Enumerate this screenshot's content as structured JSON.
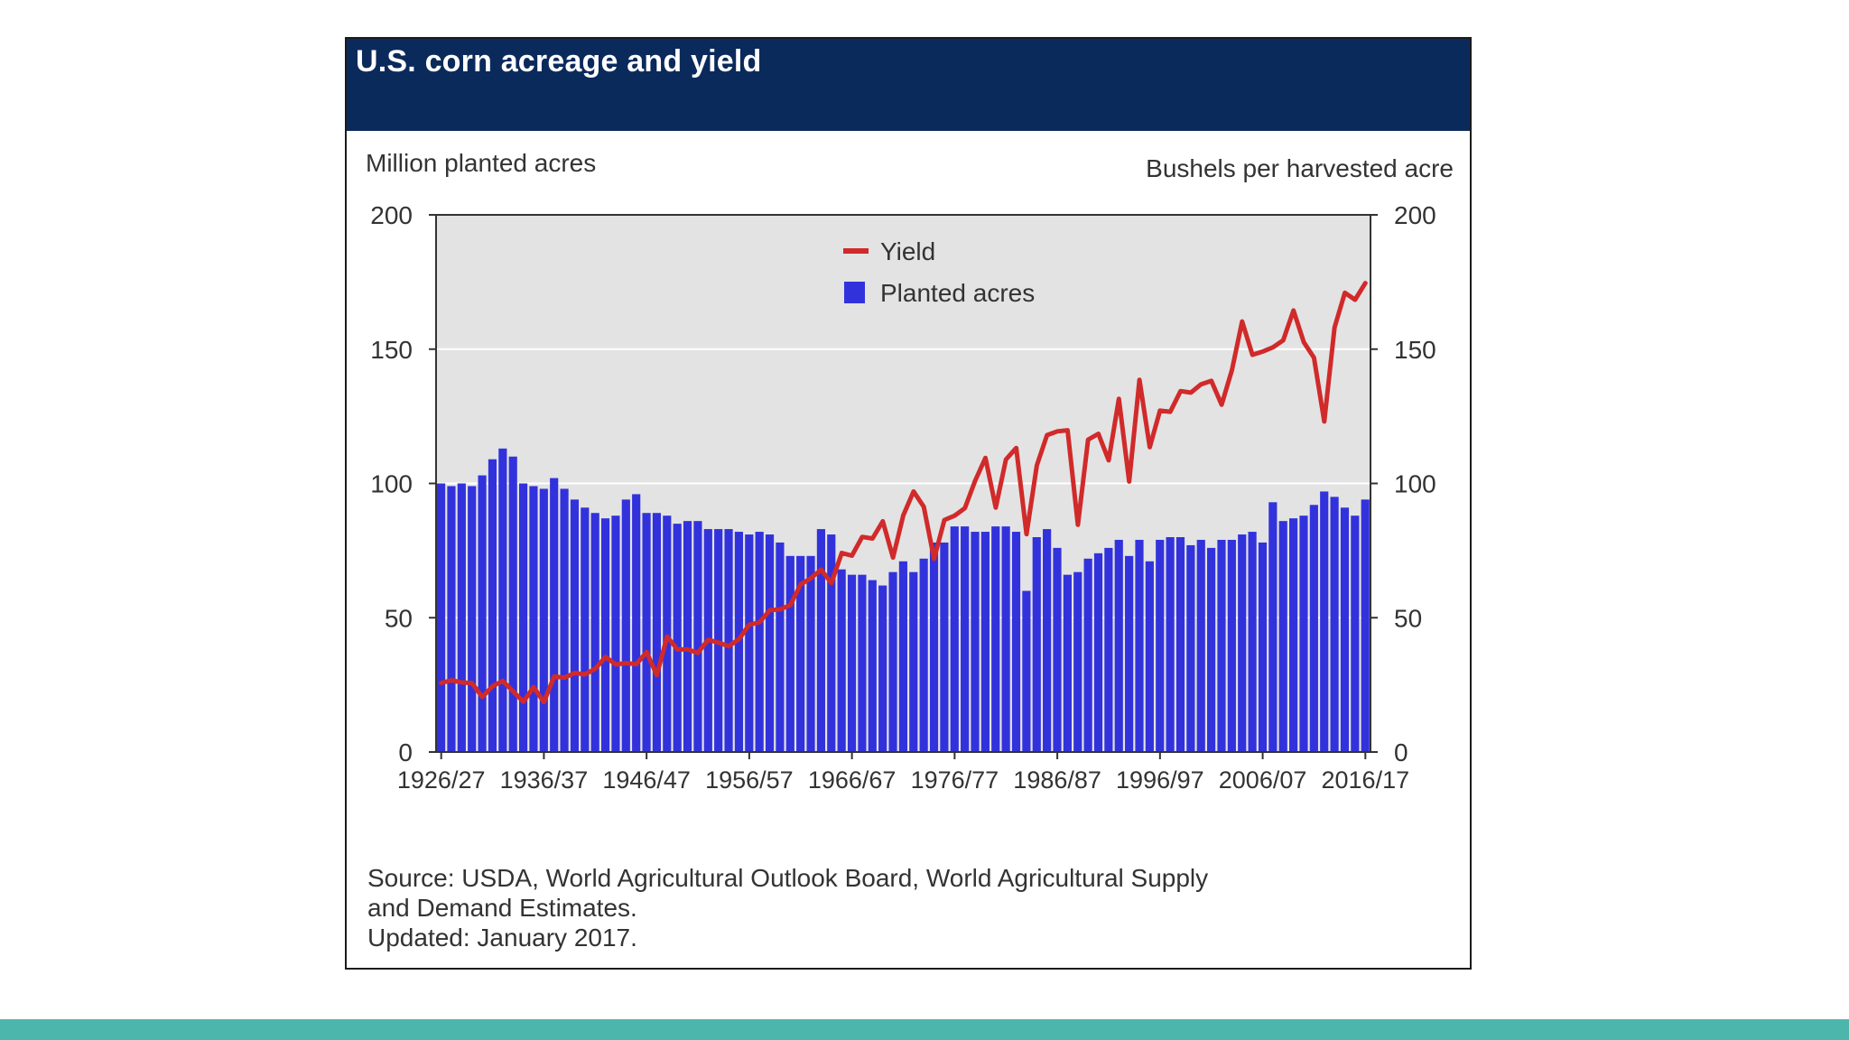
{
  "title": "U.S. corn acreage and yield",
  "source_lines": [
    "Source: USDA, World Agricultural Outlook Board, World Agricultural Supply",
    "and Demand Estimates.",
    "Updated: January 2017."
  ],
  "colors": {
    "title_bar": "#0b2a5c",
    "bars": "#3232dc",
    "yield_line": "#d12a2a",
    "plot_bg": "#e3e3e3",
    "accent_band": "#4db6ac"
  },
  "chart_data": {
    "type": "bar",
    "title": "U.S. corn acreage and yield",
    "ylabel_left": "Million planted acres",
    "ylabel_right": "Bushels per harvested acre",
    "ylim": [
      0,
      200
    ],
    "yticks": [
      0,
      50,
      100,
      150,
      200
    ],
    "xtick_labels": [
      "1926/27",
      "1936/37",
      "1946/47",
      "1956/57",
      "1966/67",
      "1976/77",
      "1986/87",
      "1996/97",
      "2006/07",
      "2016/17"
    ],
    "grid": "horizontal",
    "legend_position": "top-center",
    "years": [
      1926,
      1927,
      1928,
      1929,
      1930,
      1931,
      1932,
      1933,
      1934,
      1935,
      1936,
      1937,
      1938,
      1939,
      1940,
      1941,
      1942,
      1943,
      1944,
      1945,
      1946,
      1947,
      1948,
      1949,
      1950,
      1951,
      1952,
      1953,
      1954,
      1955,
      1956,
      1957,
      1958,
      1959,
      1960,
      1961,
      1962,
      1963,
      1964,
      1965,
      1966,
      1967,
      1968,
      1969,
      1970,
      1971,
      1972,
      1973,
      1974,
      1975,
      1976,
      1977,
      1978,
      1979,
      1980,
      1981,
      1982,
      1983,
      1984,
      1985,
      1986,
      1987,
      1988,
      1989,
      1990,
      1991,
      1992,
      1993,
      1994,
      1995,
      1996,
      1997,
      1998,
      1999,
      2000,
      2001,
      2002,
      2003,
      2004,
      2005,
      2006,
      2007,
      2008,
      2009,
      2010,
      2011,
      2012,
      2013,
      2014,
      2015,
      2016
    ],
    "series": [
      {
        "name": "Planted acres",
        "kind": "bar",
        "values": [
          100,
          99,
          100,
          99,
          103,
          109,
          113,
          110,
          100,
          99,
          98,
          102,
          98,
          94,
          91,
          89,
          87,
          88,
          94,
          96,
          89,
          89,
          88,
          85,
          86,
          86,
          83,
          83,
          83,
          82,
          81,
          82,
          81,
          78,
          73,
          73,
          73,
          83,
          81,
          68,
          66,
          66,
          64,
          62,
          67,
          71,
          67,
          72,
          78,
          78,
          84,
          84,
          82,
          82,
          84,
          84,
          82,
          60,
          80,
          83,
          76,
          66,
          67,
          72,
          74,
          76,
          79,
          73,
          79,
          71,
          79,
          80,
          80,
          77,
          79,
          76,
          79,
          79,
          81,
          82,
          78,
          93,
          86,
          87,
          88,
          92,
          97,
          95,
          91,
          88,
          94
        ]
      },
      {
        "name": "Yield",
        "kind": "line",
        "values": [
          25.7,
          26.7,
          25.9,
          25.6,
          20.5,
          24.5,
          26.5,
          22.6,
          18.7,
          24.2,
          18.6,
          28.1,
          27.7,
          29.4,
          28.9,
          31.0,
          35.4,
          32.6,
          33.1,
          32.7,
          37.2,
          28.6,
          43.0,
          38.2,
          38.2,
          36.9,
          41.8,
          40.7,
          39.4,
          42.0,
          47.4,
          48.3,
          52.8,
          53.1,
          54.7,
          62.4,
          64.7,
          67.9,
          62.9,
          74.1,
          73.1,
          80.1,
          79.5,
          85.9,
          72.4,
          88.1,
          97.0,
          91.3,
          71.9,
          86.4,
          88.0,
          90.8,
          101.0,
          109.5,
          91.0,
          108.9,
          113.2,
          81.1,
          106.7,
          118.0,
          119.4,
          119.8,
          84.6,
          116.3,
          118.5,
          108.6,
          131.5,
          100.7,
          138.6,
          113.5,
          127.1,
          126.7,
          134.4,
          133.8,
          136.9,
          138.2,
          129.3,
          142.2,
          160.3,
          147.9,
          149.1,
          150.7,
          153.3,
          164.4,
          152.6,
          146.8,
          123.1,
          158.1,
          171.0,
          168.4,
          174.6
        ]
      }
    ]
  }
}
